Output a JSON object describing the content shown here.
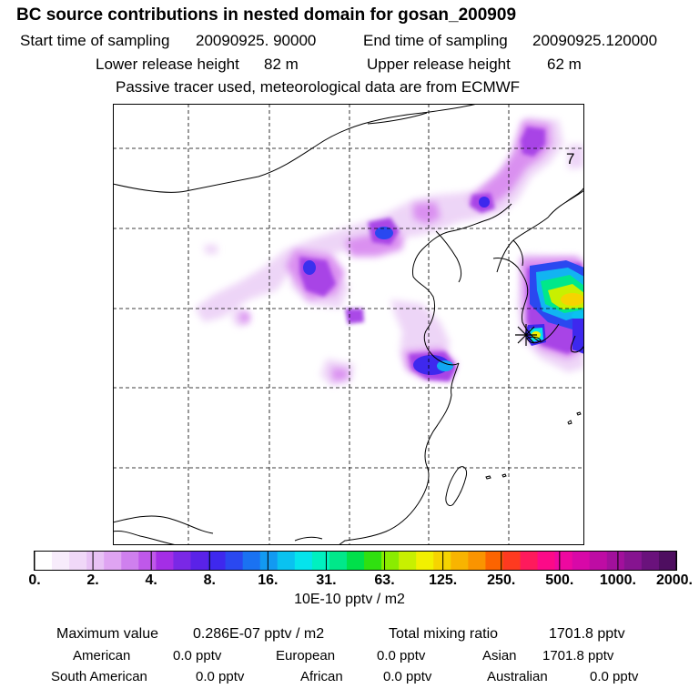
{
  "header": {
    "title": "BC  source contributions in nested domain for gosan_200909",
    "start_label": "Start time of sampling",
    "start_value": "20090925. 90000",
    "end_label": "End time of sampling",
    "end_value": "20090925.120000",
    "lower_label": "Lower release height",
    "lower_value": "82 m",
    "upper_label": "Upper release height",
    "upper_value": "62 m",
    "note": "Passive tracer used, meteorological data are from ECMWF"
  },
  "map": {
    "label": "7",
    "receptor": "gosan"
  },
  "colorbar": {
    "ticks": [
      "0.",
      "2.",
      "4.",
      "8.",
      "16.",
      "31.",
      "63.",
      "125.",
      "250.",
      "500.",
      "1000.",
      "2000."
    ],
    "unit": "10E-10 pptv / m2",
    "colors": [
      "#ffffff",
      "#f7ecfb",
      "#f0d8f8",
      "#e8c2f5",
      "#dfa4f2",
      "#cf80ee",
      "#bf58ea",
      "#a42ee6",
      "#7a28e6",
      "#5a22e8",
      "#3e28ee",
      "#2a48f0",
      "#1a72f2",
      "#129af2",
      "#0ac2f0",
      "#05e4ec",
      "#00f0c0",
      "#00e88a",
      "#00e04a",
      "#30e010",
      "#8aec00",
      "#c8f000",
      "#f2f000",
      "#f6d400",
      "#f8b400",
      "#fa9400",
      "#fc6400",
      "#fe3a20",
      "#fe1a5c",
      "#fc0a88",
      "#ee08a0",
      "#d808a8",
      "#be0ca4",
      "#a2109c",
      "#861490",
      "#6a127c",
      "#4e0e60"
    ]
  },
  "stats": {
    "max_label": "Maximum value",
    "max_value": "0.286E-07 pptv / m2",
    "total_label": "Total mixing ratio",
    "total_value": "1701.8 pptv",
    "american_label": "American",
    "american_value": "0.0 pptv",
    "european_label": "European",
    "european_value": "0.0 pptv",
    "asian_label": "Asian",
    "asian_value": "1701.8 pptv",
    "south_american_label": "South American",
    "south_american_value": "0.0 pptv",
    "african_label": "African",
    "african_value": "0.0 pptv",
    "australian_label": "Australian",
    "australian_value": "0.0 pptv"
  }
}
